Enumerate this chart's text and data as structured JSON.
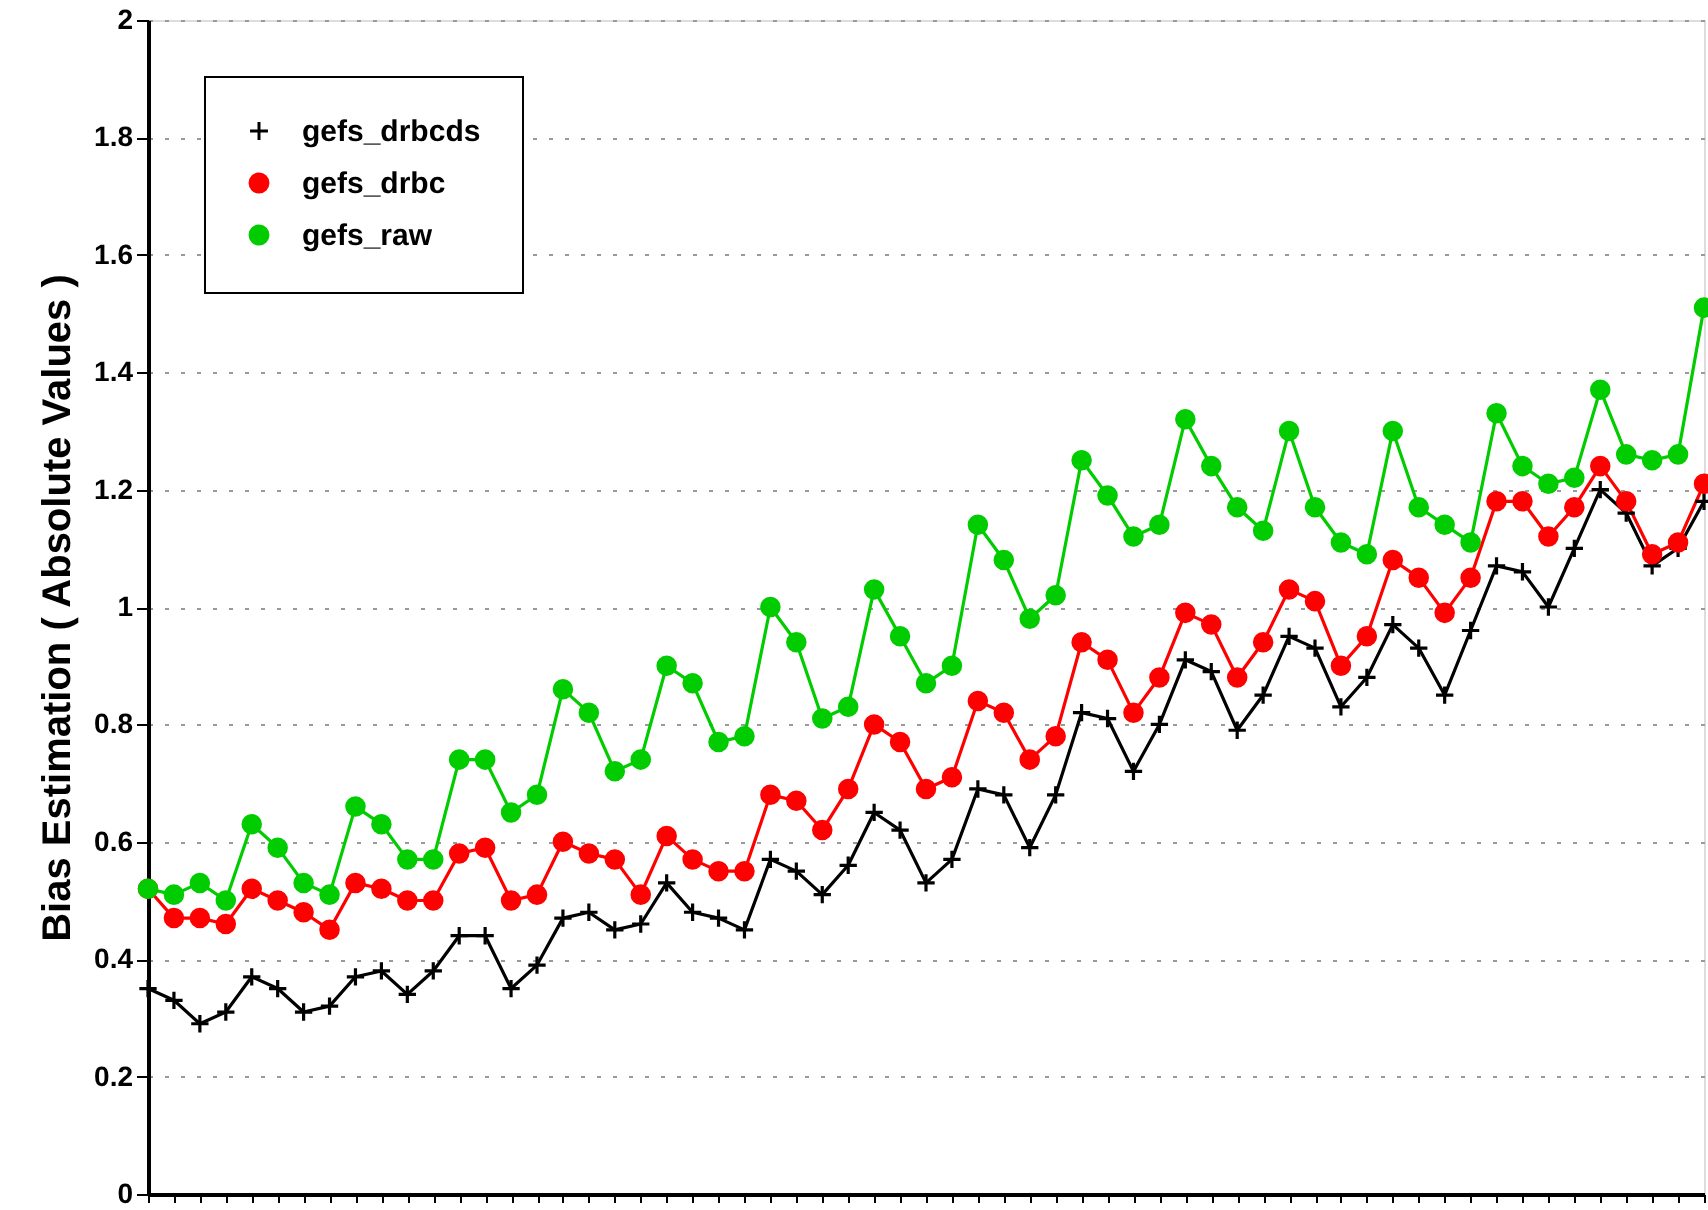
{
  "chart_data": {
    "type": "line",
    "ylabel": "Bias Estimation ( Absolute Values )",
    "categories": [
      null,
      null,
      null,
      null,
      null,
      null,
      null,
      null,
      null,
      null,
      null,
      null,
      null,
      null,
      null,
      null,
      null,
      null,
      null,
      null,
      null,
      null,
      null,
      null,
      null,
      null,
      null,
      null,
      null,
      null,
      null,
      null,
      null,
      null,
      null,
      null,
      null,
      null,
      null,
      null,
      null,
      null,
      null,
      null,
      null,
      null,
      null,
      null,
      null,
      null,
      null,
      null,
      null,
      null,
      null,
      null,
      null,
      null,
      null,
      null,
      null
    ],
    "series": [
      {
        "name": "gefs_drbcds",
        "color": "#000000",
        "marker": "cross",
        "values": [
          0.35,
          0.33,
          0.29,
          0.31,
          0.37,
          0.35,
          0.31,
          0.32,
          0.37,
          0.38,
          0.34,
          0.38,
          0.44,
          0.44,
          0.35,
          0.39,
          0.47,
          0.48,
          0.45,
          0.46,
          0.53,
          0.48,
          0.47,
          0.45,
          0.57,
          0.55,
          0.51,
          0.56,
          0.65,
          0.62,
          0.53,
          0.57,
          0.69,
          0.68,
          0.59,
          0.68,
          0.82,
          0.81,
          0.72,
          0.8,
          0.91,
          0.89,
          0.79,
          0.85,
          0.95,
          0.93,
          0.83,
          0.88,
          0.97,
          0.93,
          0.85,
          0.96,
          1.07,
          1.06,
          1.0,
          1.1,
          1.2,
          1.16,
          1.07,
          1.1,
          1.18
        ]
      },
      {
        "name": "gefs_drbc",
        "color": "#ff0000",
        "marker": "circle",
        "values": [
          0.52,
          0.47,
          0.47,
          0.46,
          0.52,
          0.5,
          0.48,
          0.45,
          0.53,
          0.52,
          0.5,
          0.5,
          0.58,
          0.59,
          0.5,
          0.51,
          0.6,
          0.58,
          0.57,
          0.51,
          0.61,
          0.57,
          0.55,
          0.55,
          0.68,
          0.67,
          0.62,
          0.69,
          0.8,
          0.77,
          0.69,
          0.71,
          0.84,
          0.82,
          0.74,
          0.78,
          0.94,
          0.91,
          0.82,
          0.88,
          0.99,
          0.97,
          0.88,
          0.94,
          1.03,
          1.01,
          0.9,
          0.95,
          1.08,
          1.05,
          0.99,
          1.05,
          1.18,
          1.18,
          1.12,
          1.17,
          1.24,
          1.18,
          1.09,
          1.11,
          1.21
        ]
      },
      {
        "name": "gefs_raw",
        "color": "#00cc00",
        "marker": "circle",
        "values": [
          0.52,
          0.51,
          0.53,
          0.5,
          0.63,
          0.59,
          0.53,
          0.51,
          0.66,
          0.63,
          0.57,
          0.57,
          0.74,
          0.74,
          0.65,
          0.68,
          0.86,
          0.82,
          0.72,
          0.74,
          0.9,
          0.87,
          0.77,
          0.78,
          1.0,
          0.94,
          0.81,
          0.83,
          1.03,
          0.95,
          0.87,
          0.9,
          1.14,
          1.08,
          0.98,
          1.02,
          1.25,
          1.19,
          1.12,
          1.14,
          1.32,
          1.24,
          1.17,
          1.13,
          1.3,
          1.17,
          1.11,
          1.09,
          1.3,
          1.17,
          1.14,
          1.11,
          1.33,
          1.24,
          1.21,
          1.22,
          1.37,
          1.26,
          1.25,
          1.26,
          1.51
        ]
      }
    ],
    "ylim": [
      0,
      2
    ],
    "yticks": [
      0,
      0.2,
      0.4,
      0.6,
      0.8,
      1,
      1.2,
      1.4,
      1.6,
      1.8,
      2
    ],
    "grid": "y",
    "legend": "top left",
    "tick_labels": "y"
  }
}
